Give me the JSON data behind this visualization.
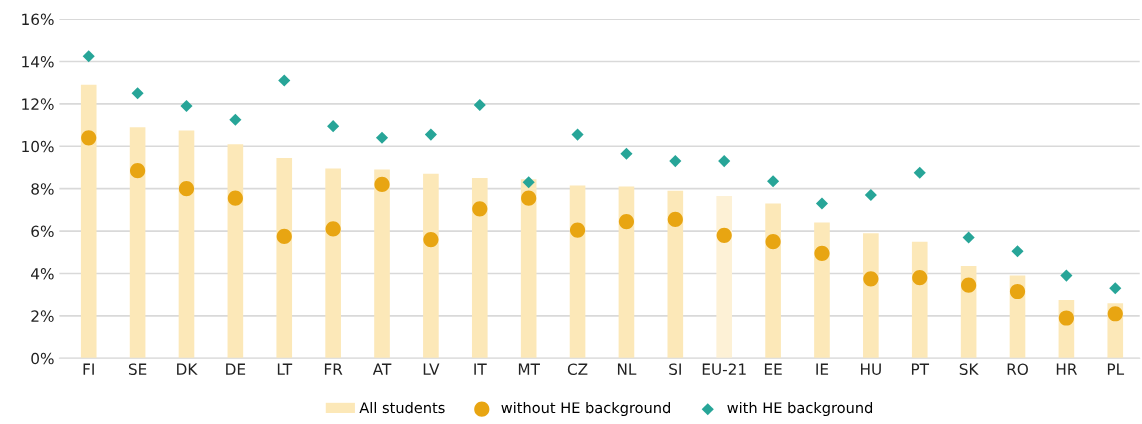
{
  "chart_data": {
    "type": "bar",
    "categories": [
      "FI",
      "SE",
      "DK",
      "DE",
      "LT",
      "FR",
      "AT",
      "LV",
      "IT",
      "MT",
      "CZ",
      "NL",
      "SI",
      "EU-21",
      "EE",
      "IE",
      "HU",
      "PT",
      "SK",
      "RO",
      "HR",
      "PL"
    ],
    "series": [
      {
        "name": "All students",
        "colors": [
          "#fce8b8",
          "#fce8b8",
          "#fce8b8",
          "#fce8b8",
          "#fce8b8",
          "#fce8b8",
          "#fce8b8",
          "#fce8b8",
          "#fce8b8",
          "#fce8b8",
          "#fce8b8",
          "#fce8b8",
          "#fce8b8",
          "#fdf1d6",
          "#fce8b8",
          "#fce8b8",
          "#fce8b8",
          "#fce8b8",
          "#fce8b8",
          "#fce8b8",
          "#fce8b8",
          "#fce8b8"
        ],
        "color": "#fce8b8",
        "values": [
          12.9,
          10.9,
          10.75,
          10.1,
          9.45,
          8.95,
          8.9,
          8.7,
          8.5,
          8.45,
          8.15,
          8.1,
          7.9,
          7.65,
          7.3,
          6.4,
          5.9,
          5.5,
          4.35,
          3.9,
          2.75,
          2.6
        ]
      },
      {
        "name": "without HE background",
        "type": "scatter",
        "marker": "circle",
        "color": "#e8a512",
        "values": [
          10.4,
          8.85,
          8.0,
          7.55,
          5.75,
          6.1,
          8.2,
          5.6,
          7.05,
          7.55,
          6.05,
          6.45,
          6.55,
          5.8,
          5.5,
          4.95,
          3.75,
          3.8,
          3.45,
          3.15,
          1.9,
          2.1
        ]
      },
      {
        "name": "with HE background",
        "type": "scatter",
        "marker": "diamond",
        "color": "#27a598",
        "values": [
          14.25,
          12.5,
          11.9,
          11.25,
          13.1,
          10.95,
          10.4,
          10.55,
          11.95,
          8.3,
          10.55,
          9.65,
          9.3,
          9.3,
          8.35,
          7.3,
          7.7,
          8.75,
          5.7,
          5.05,
          3.9,
          3.3
        ]
      }
    ],
    "ylim": [
      0,
      16
    ],
    "yticks": [
      {
        "value": 0,
        "label": "0%"
      },
      {
        "value": 2,
        "label": "2%"
      },
      {
        "value": 4,
        "label": "4%"
      },
      {
        "value": 6,
        "label": "6%"
      },
      {
        "value": 8,
        "label": "8%"
      },
      {
        "value": 10,
        "label": "10%"
      },
      {
        "value": 12,
        "label": "12%"
      },
      {
        "value": 14,
        "label": "14%"
      },
      {
        "value": 16,
        "label": "16%"
      }
    ],
    "grid": "y",
    "legend": "bottom"
  }
}
